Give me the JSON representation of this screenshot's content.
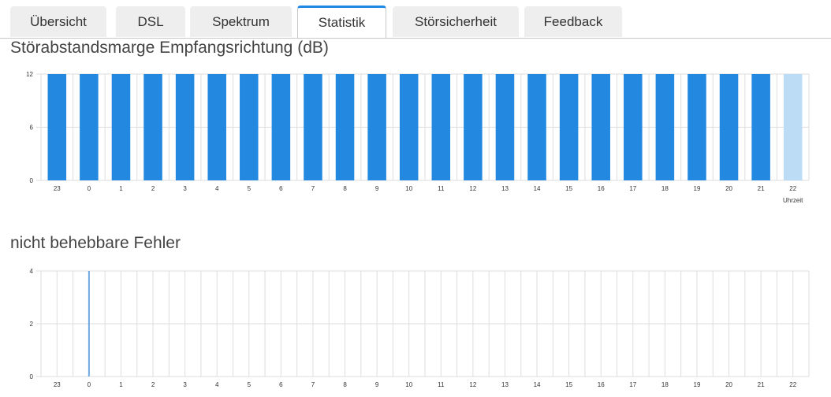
{
  "tabs": [
    {
      "label": "Übersicht",
      "active": false
    },
    {
      "label": "DSL",
      "active": false
    },
    {
      "label": "Spektrum",
      "active": false
    },
    {
      "label": "Statistik",
      "active": true
    },
    {
      "label": "Störsicherheit",
      "active": false
    },
    {
      "label": "Feedback",
      "active": false
    }
  ],
  "colors": {
    "accent": "#1e88e5",
    "bar": "#2389e0",
    "bar_current": "#bcdcf5",
    "error_line": "#6fa8e0",
    "grid": "#dddddd"
  },
  "chart_data": [
    {
      "type": "bar",
      "title": "Störabstandsmarge Empfangsrichtung (dB)",
      "xlabel": "Uhrzeit",
      "ylabel": "",
      "categories": [
        "23",
        "0",
        "1",
        "2",
        "3",
        "4",
        "5",
        "6",
        "7",
        "8",
        "9",
        "10",
        "11",
        "12",
        "13",
        "14",
        "15",
        "16",
        "17",
        "18",
        "19",
        "20",
        "21",
        "22"
      ],
      "values": [
        12,
        12,
        12,
        12,
        12,
        12,
        12,
        12,
        12,
        12,
        12,
        12,
        12,
        12,
        12,
        12,
        12,
        12,
        12,
        12,
        12,
        12,
        12,
        12
      ],
      "highlight_last": true,
      "ylim": [
        0,
        12
      ],
      "yticks": [
        "0",
        "6",
        "12"
      ],
      "grid": true
    },
    {
      "type": "bar",
      "title": "nicht behebbare Fehler",
      "xlabel": "",
      "ylabel": "",
      "categories": [
        "23",
        "0",
        "1",
        "2",
        "3",
        "4",
        "5",
        "6",
        "7",
        "8",
        "9",
        "10",
        "11",
        "12",
        "13",
        "14",
        "15",
        "16",
        "17",
        "18",
        "19",
        "20",
        "21",
        "22"
      ],
      "values": [
        0,
        4,
        0,
        0,
        0,
        0,
        0,
        0,
        0,
        0,
        0,
        0,
        0,
        0,
        0,
        0,
        0,
        0,
        0,
        0,
        0,
        0,
        0,
        0
      ],
      "ylim": [
        0,
        4
      ],
      "yticks": [
        "0",
        "2",
        "4"
      ],
      "grid": true
    }
  ]
}
